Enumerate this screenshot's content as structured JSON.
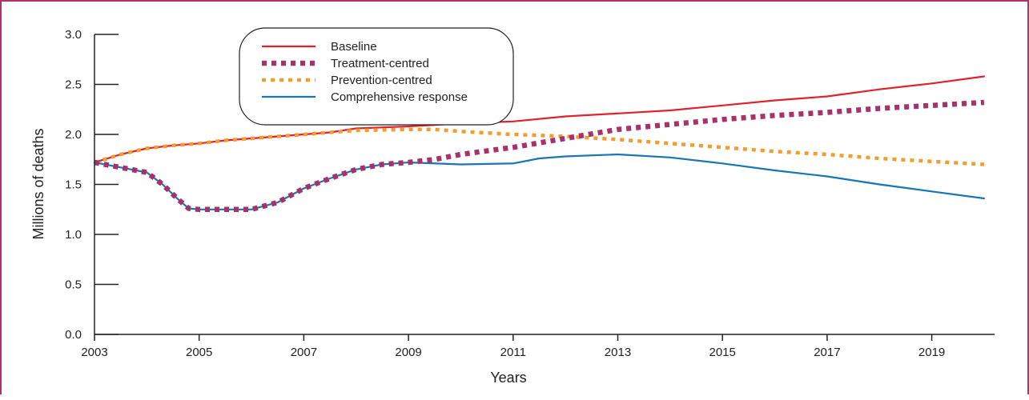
{
  "chart_data": {
    "type": "line",
    "xlabel": "Years",
    "ylabel": "Millions of deaths",
    "xlim": [
      2003,
      2020.2
    ],
    "ylim": [
      0,
      3
    ],
    "x_ticks": [
      2003,
      2005,
      2007,
      2009,
      2011,
      2013,
      2015,
      2017,
      2019
    ],
    "y_ticks": [
      "0.0",
      "0.5",
      "1.0",
      "1.5",
      "2.0",
      "2.5",
      "3.0"
    ],
    "legend_position": "top-center",
    "grid": false,
    "series": [
      {
        "name": "Baseline",
        "color": "#e3212c",
        "style": "solid",
        "x": [
          2003,
          2003.5,
          2004,
          2004.5,
          2005,
          2005.5,
          2006,
          2006.5,
          2007,
          2007.5,
          2008,
          2009,
          2010,
          2011,
          2012,
          2013,
          2014,
          2015,
          2016,
          2017,
          2018,
          2019,
          2020
        ],
        "y": [
          1.72,
          1.8,
          1.86,
          1.89,
          1.91,
          1.94,
          1.96,
          1.98,
          2.0,
          2.02,
          2.06,
          2.08,
          2.11,
          2.13,
          2.18,
          2.21,
          2.24,
          2.29,
          2.34,
          2.38,
          2.45,
          2.51,
          2.58
        ]
      },
      {
        "name": "Treatment-centred",
        "color": "#a7316a",
        "style": "dotted-thick",
        "x": [
          2003,
          2003.5,
          2004,
          2004.3,
          2004.6,
          2004.8,
          2005,
          2005.5,
          2006,
          2006.5,
          2007,
          2007.5,
          2008,
          2008.5,
          2009,
          2009.5,
          2010,
          2011,
          2012,
          2013,
          2014,
          2015,
          2016,
          2017,
          2018,
          2019,
          2020
        ],
        "y": [
          1.72,
          1.67,
          1.62,
          1.5,
          1.35,
          1.26,
          1.25,
          1.25,
          1.25,
          1.32,
          1.46,
          1.56,
          1.65,
          1.7,
          1.72,
          1.75,
          1.8,
          1.87,
          1.96,
          2.05,
          2.1,
          2.15,
          2.19,
          2.22,
          2.26,
          2.29,
          2.32
        ]
      },
      {
        "name": "Prevention-centred",
        "color": "#f39c2f",
        "style": "dotted",
        "x": [
          2003,
          2003.5,
          2004,
          2004.5,
          2005,
          2005.5,
          2006,
          2006.5,
          2007,
          2007.5,
          2008,
          2009,
          2009.5,
          2010,
          2011,
          2012,
          2013,
          2014,
          2015,
          2016,
          2017,
          2018,
          2019,
          2020
        ],
        "y": [
          1.72,
          1.8,
          1.86,
          1.89,
          1.91,
          1.94,
          1.96,
          1.98,
          2.0,
          2.02,
          2.04,
          2.05,
          2.05,
          2.03,
          2.0,
          1.98,
          1.95,
          1.91,
          1.87,
          1.83,
          1.8,
          1.76,
          1.73,
          1.7
        ]
      },
      {
        "name": "Comprehensive response",
        "color": "#1a75b4",
        "style": "solid",
        "x": [
          2003,
          2003.5,
          2004,
          2004.3,
          2004.6,
          2004.8,
          2005,
          2005.5,
          2006,
          2006.5,
          2007,
          2007.5,
          2008,
          2008.5,
          2009,
          2010,
          2011,
          2011.5,
          2012,
          2013,
          2014,
          2015,
          2016,
          2017,
          2018,
          2019,
          2020
        ],
        "y": [
          1.72,
          1.67,
          1.62,
          1.5,
          1.35,
          1.26,
          1.25,
          1.25,
          1.25,
          1.32,
          1.46,
          1.56,
          1.65,
          1.7,
          1.72,
          1.7,
          1.71,
          1.76,
          1.78,
          1.8,
          1.77,
          1.71,
          1.64,
          1.58,
          1.5,
          1.43,
          1.36
        ]
      }
    ]
  }
}
